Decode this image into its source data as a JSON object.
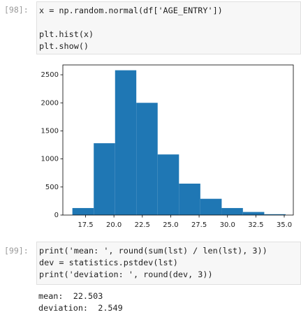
{
  "cells": [
    {
      "prompt": "[98]:",
      "code": [
        "x = np.random.normal(df['AGE_ENTRY'])",
        "plt.hist(x)",
        "plt.show()"
      ]
    },
    {
      "prompt": "[99]:",
      "code": [
        "print('mean: ', round(sum(lst) / len(lst), 3))",
        "dev = statistics.pstdev(lst)",
        "print('deviation: ', round(dev, 3))"
      ],
      "output": [
        "mean:  22.503",
        "deviation:  2.549"
      ]
    }
  ],
  "chart_data": {
    "type": "histogram",
    "color": "#1f77b4",
    "bins": [
      16.34,
      18.22,
      20.1,
      21.97,
      23.85,
      25.73,
      27.61,
      29.49,
      31.36,
      33.24,
      35.12
    ],
    "values": [
      125,
      1280,
      2580,
      2000,
      1080,
      560,
      290,
      125,
      55,
      15
    ],
    "xlim": [
      15.5,
      35.8
    ],
    "xticks": [
      17.5,
      {
        "value": 20,
        "label": "20.0"
      },
      22.5,
      {
        "value": 25,
        "label": "25.0"
      },
      27.5,
      {
        "value": 30,
        "label": "30.0"
      },
      32.5,
      {
        "value": 35,
        "label": "35.0"
      }
    ],
    "ylim": [
      0,
      2675
    ],
    "yticks": [
      0,
      500,
      1000,
      1500,
      2000,
      2500
    ]
  }
}
